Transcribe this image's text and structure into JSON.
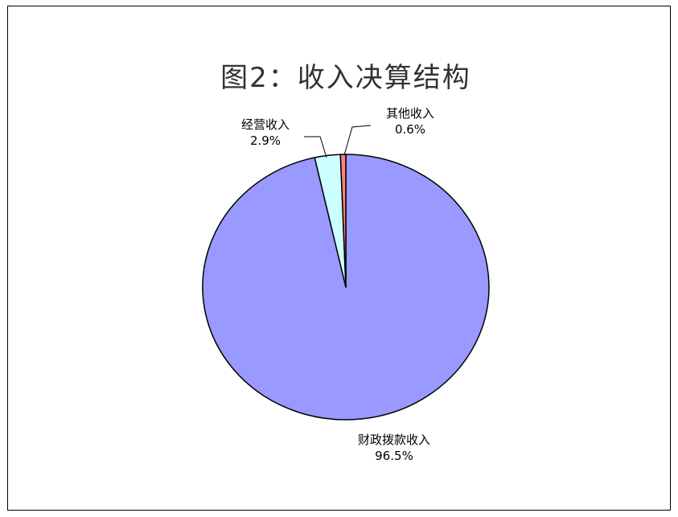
{
  "chart_data": {
    "type": "pie",
    "title": "图2：收入决算结构",
    "slices": [
      {
        "label": "财政拨款收入",
        "value": 96.5,
        "value_label": "96.5%",
        "color": "#9999ff"
      },
      {
        "label": "经营收入",
        "value": 2.9,
        "value_label": "2.9%",
        "color": "#ccffff"
      },
      {
        "label": "其他收入",
        "value": 0.6,
        "value_label": "0.6%",
        "color": "#ff8080"
      }
    ],
    "start": "12 o'clock",
    "direction": "clockwise",
    "legend": "none"
  }
}
